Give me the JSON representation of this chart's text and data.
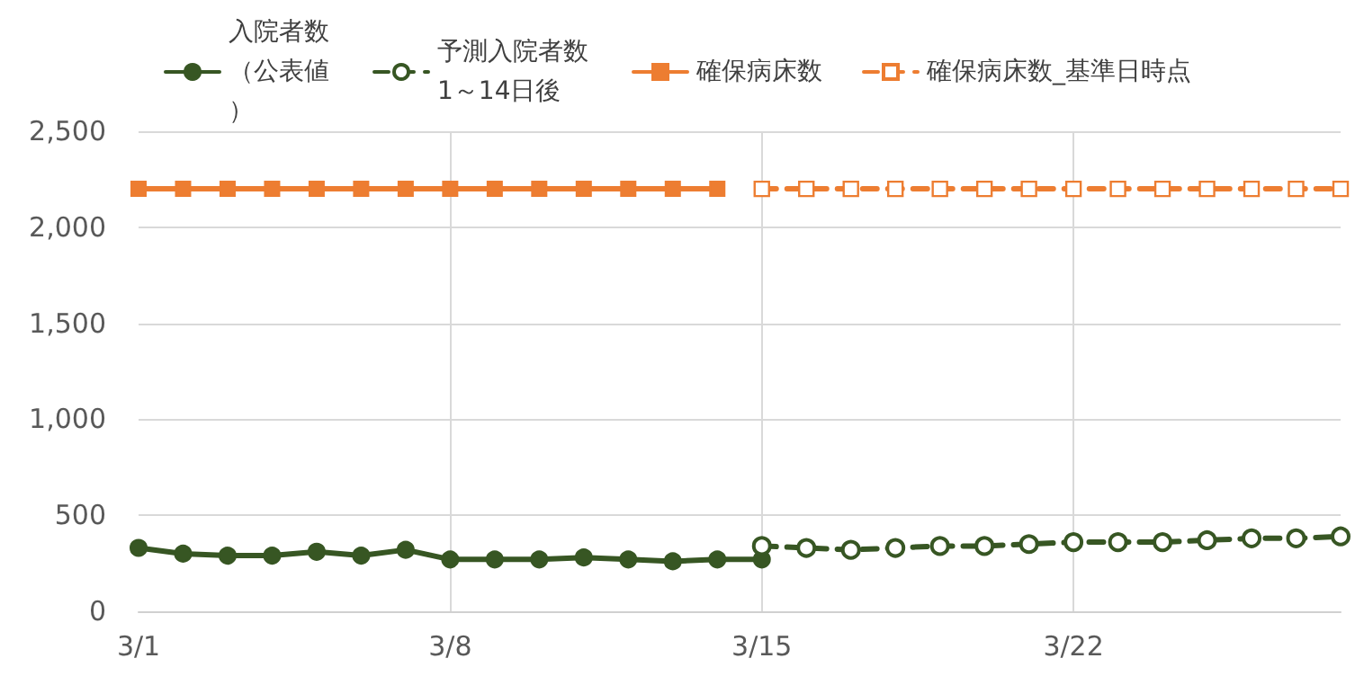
{
  "chart_data": {
    "type": "line",
    "categories": [
      "3/1",
      null,
      null,
      null,
      null,
      null,
      null,
      "3/8",
      null,
      null,
      null,
      null,
      null,
      null,
      "3/15",
      null,
      null,
      null,
      null,
      null,
      null,
      "3/22",
      null,
      null,
      null,
      null,
      null,
      null
    ],
    "series": [
      {
        "name": "入院者数（公表値）",
        "color": "#375623",
        "marker": "circle",
        "line_style": "solid",
        "values": [
          330,
          300,
          290,
          290,
          310,
          290,
          320,
          270,
          270,
          270,
          280,
          270,
          260,
          270,
          270,
          null,
          null,
          null,
          null,
          null,
          null,
          null,
          null,
          null,
          null,
          null,
          null,
          null
        ]
      },
      {
        "name": "予測入院者数1～14日後",
        "color": "#375623",
        "marker": "circle",
        "line_style": "dashed",
        "values": [
          null,
          null,
          null,
          null,
          null,
          null,
          null,
          null,
          null,
          null,
          null,
          null,
          null,
          null,
          340,
          330,
          320,
          330,
          340,
          340,
          350,
          360,
          360,
          360,
          370,
          380,
          380,
          390
        ]
      },
      {
        "name": "確保病床数",
        "color": "#ed7d31",
        "marker": "square",
        "line_style": "solid",
        "values": [
          2200,
          2200,
          2200,
          2200,
          2200,
          2200,
          2200,
          2200,
          2200,
          2200,
          2200,
          2200,
          2200,
          2200,
          null,
          null,
          null,
          null,
          null,
          null,
          null,
          null,
          null,
          null,
          null,
          null,
          null,
          null
        ]
      },
      {
        "name": "確保病床数_基準日時点",
        "color": "#ed7d31",
        "marker": "square",
        "line_style": "dashed",
        "values": [
          null,
          null,
          null,
          null,
          null,
          null,
          null,
          null,
          null,
          null,
          null,
          null,
          null,
          null,
          2200,
          2200,
          2200,
          2200,
          2200,
          2200,
          2200,
          2200,
          2200,
          2200,
          2200,
          2200,
          2200,
          2200
        ]
      }
    ],
    "ylim": [
      0,
      2500
    ],
    "yticks": [
      0,
      {
        "value": 500,
        "label": "500"
      },
      {
        "value": 1000,
        "label": "1,000"
      },
      {
        "value": 1500,
        "label": "1,500"
      },
      {
        "value": 2000,
        "label": "2,000"
      },
      {
        "value": 2500,
        "label": "2,500"
      }
    ],
    "grid": true,
    "legend": "top"
  }
}
